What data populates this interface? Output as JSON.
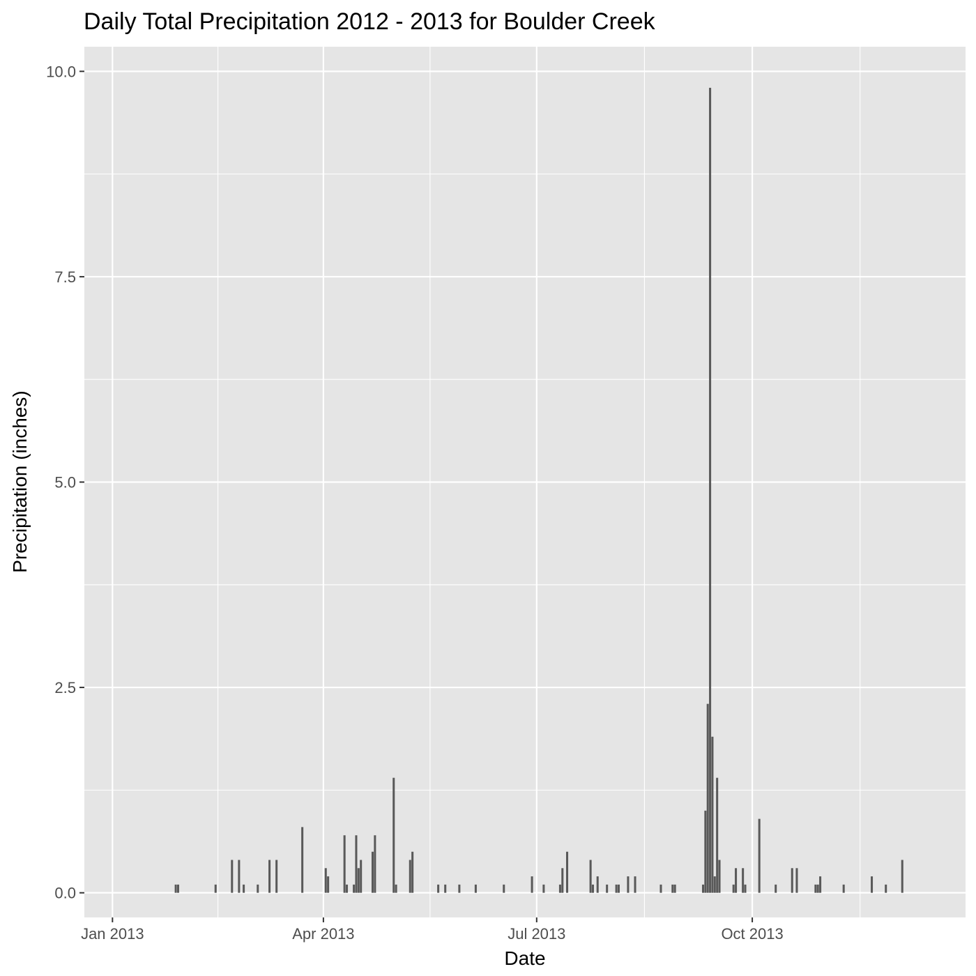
{
  "chart_data": {
    "type": "bar",
    "title": "Daily Total Precipitation 2012 - 2013 for Boulder Creek",
    "xlabel": "Date",
    "ylabel": "Precipitation (inches)",
    "ylim": [
      -0.3,
      10.3
    ],
    "xlim": [
      "2012-12-20",
      "2013-12-31"
    ],
    "grid": true,
    "y_ticks": [
      0.0,
      2.5,
      5.0,
      7.5,
      10.0
    ],
    "y_tick_labels": [
      "0.0",
      "2.5",
      "5.0",
      "7.5",
      "10.0"
    ],
    "x_ticks": [
      "2013-01-01",
      "2013-04-01",
      "2013-07-01",
      "2013-10-01"
    ],
    "x_tick_labels": [
      "Jan 2013",
      "Apr 2013",
      "Jul 2013",
      "Oct 2013"
    ],
    "x": [
      "2013-01-28",
      "2013-01-29",
      "2013-02-14",
      "2013-02-21",
      "2013-02-24",
      "2013-02-26",
      "2013-03-04",
      "2013-03-09",
      "2013-03-12",
      "2013-03-23",
      "2013-04-02",
      "2013-04-03",
      "2013-04-10",
      "2013-04-11",
      "2013-04-14",
      "2013-04-15",
      "2013-04-16",
      "2013-04-17",
      "2013-04-22",
      "2013-04-23",
      "2013-05-01",
      "2013-05-02",
      "2013-05-08",
      "2013-05-09",
      "2013-05-20",
      "2013-05-23",
      "2013-05-29",
      "2013-06-05",
      "2013-06-17",
      "2013-06-29",
      "2013-07-04",
      "2013-07-11",
      "2013-07-12",
      "2013-07-14",
      "2013-07-24",
      "2013-07-25",
      "2013-07-27",
      "2013-07-31",
      "2013-08-04",
      "2013-08-05",
      "2013-08-09",
      "2013-08-12",
      "2013-08-23",
      "2013-08-28",
      "2013-08-29",
      "2013-09-10",
      "2013-09-11",
      "2013-09-12",
      "2013-09-13",
      "2013-09-14",
      "2013-09-15",
      "2013-09-16",
      "2013-09-17",
      "2013-09-23",
      "2013-09-24",
      "2013-09-27",
      "2013-09-28",
      "2013-10-04",
      "2013-10-11",
      "2013-10-18",
      "2013-10-20",
      "2013-10-28",
      "2013-10-29",
      "2013-10-30",
      "2013-11-09",
      "2013-11-21",
      "2013-11-27",
      "2013-12-04"
    ],
    "values": [
      0.1,
      0.1,
      0.1,
      0.4,
      0.4,
      0.1,
      0.1,
      0.4,
      0.4,
      0.8,
      0.3,
      0.2,
      0.7,
      0.1,
      0.1,
      0.7,
      0.3,
      0.4,
      0.5,
      0.7,
      1.4,
      0.1,
      0.4,
      0.5,
      0.1,
      0.1,
      0.1,
      0.1,
      0.1,
      0.2,
      0.1,
      0.1,
      0.3,
      0.5,
      0.4,
      0.1,
      0.2,
      0.1,
      0.1,
      0.1,
      0.2,
      0.2,
      0.1,
      0.1,
      0.1,
      0.1,
      1.0,
      2.3,
      9.8,
      1.9,
      0.2,
      1.4,
      0.4,
      0.1,
      0.3,
      0.3,
      0.1,
      0.9,
      0.1,
      0.3,
      0.3,
      0.1,
      0.1,
      0.2,
      0.1,
      0.2,
      0.1,
      0.4
    ]
  }
}
